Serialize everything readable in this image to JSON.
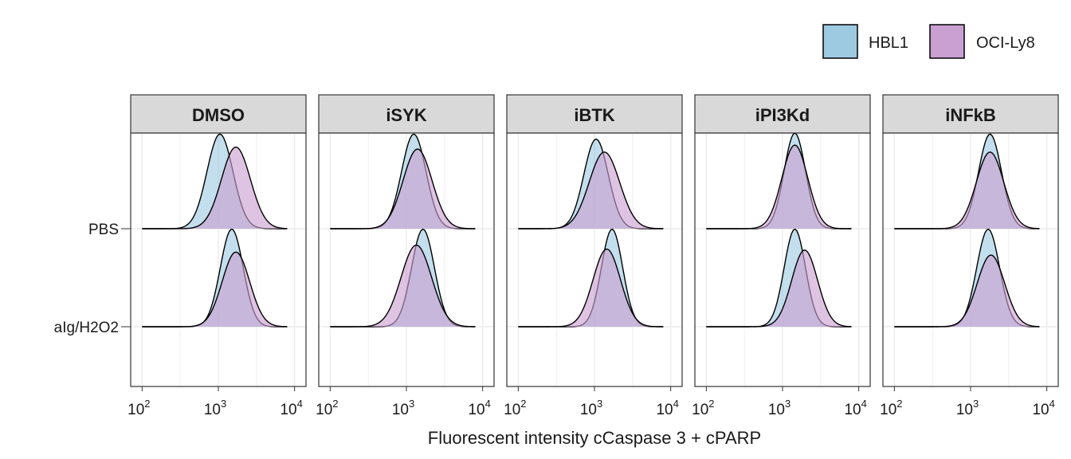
{
  "chart_data": {
    "type": "area",
    "subtype": "ridgeline-density",
    "x_axis": {
      "scale": "log10",
      "xlim": [
        100,
        10000
      ],
      "tick_values": [
        100,
        1000,
        10000
      ],
      "tick_labels": [
        {
          "base": "10",
          "exp": "2"
        },
        {
          "base": "10",
          "exp": "3"
        },
        {
          "base": "10",
          "exp": "4"
        }
      ],
      "label": "Fluorescent intensity cCaspase 3 + cPARP"
    },
    "y_axis": {
      "categories": [
        "PBS",
        "aIg/H2O2"
      ]
    },
    "grid": true,
    "legend": {
      "position": "top-right",
      "entries": [
        {
          "name": "HBL1",
          "color": "#9ecae1"
        },
        {
          "name": "OCI-Ly8",
          "color": "#c9a0d1"
        }
      ]
    },
    "facets": [
      {
        "label": "DMSO",
        "rows": [
          {
            "category": "PBS",
            "series": [
              {
                "name": "HBL1",
                "peak": 1050,
                "width": 0.17,
                "height": 0.95
              },
              {
                "name": "OCI-Ly8",
                "peak": 1700,
                "width": 0.19,
                "height": 0.82
              }
            ]
          },
          {
            "category": "aIg/H2O2",
            "series": [
              {
                "name": "HBL1",
                "peak": 1500,
                "width": 0.15,
                "height": 0.98
              },
              {
                "name": "OCI-Ly8",
                "peak": 1700,
                "width": 0.18,
                "height": 0.75
              }
            ]
          }
        ]
      },
      {
        "label": "iSYK",
        "rows": [
          {
            "category": "PBS",
            "series": [
              {
                "name": "HBL1",
                "peak": 1250,
                "width": 0.16,
                "height": 0.95
              },
              {
                "name": "OCI-Ly8",
                "peak": 1400,
                "width": 0.19,
                "height": 0.8
              }
            ]
          },
          {
            "category": "aIg/H2O2",
            "series": [
              {
                "name": "HBL1",
                "peak": 1650,
                "width": 0.15,
                "height": 0.98
              },
              {
                "name": "OCI-Ly8",
                "peak": 1350,
                "width": 0.2,
                "height": 0.82
              }
            ]
          }
        ]
      },
      {
        "label": "iBTK",
        "rows": [
          {
            "category": "PBS",
            "series": [
              {
                "name": "HBL1",
                "peak": 1050,
                "width": 0.16,
                "height": 0.9
              },
              {
                "name": "OCI-Ly8",
                "peak": 1350,
                "width": 0.2,
                "height": 0.77
              }
            ]
          },
          {
            "category": "aIg/H2O2",
            "series": [
              {
                "name": "HBL1",
                "peak": 1700,
                "width": 0.14,
                "height": 0.98
              },
              {
                "name": "OCI-Ly8",
                "peak": 1450,
                "width": 0.18,
                "height": 0.78
              }
            ]
          }
        ]
      },
      {
        "label": "iPI3Kd",
        "rows": [
          {
            "category": "PBS",
            "series": [
              {
                "name": "HBL1",
                "peak": 1450,
                "width": 0.14,
                "height": 0.96
              },
              {
                "name": "OCI-Ly8",
                "peak": 1450,
                "width": 0.17,
                "height": 0.84
              }
            ]
          },
          {
            "category": "aIg/H2O2",
            "series": [
              {
                "name": "HBL1",
                "peak": 1450,
                "width": 0.14,
                "height": 0.98
              },
              {
                "name": "OCI-Ly8",
                "peak": 1950,
                "width": 0.17,
                "height": 0.77
              }
            ]
          }
        ]
      },
      {
        "label": "iNFkB",
        "rows": [
          {
            "category": "PBS",
            "series": [
              {
                "name": "HBL1",
                "peak": 1800,
                "width": 0.15,
                "height": 0.95
              },
              {
                "name": "OCI-Ly8",
                "peak": 1800,
                "width": 0.18,
                "height": 0.77
              }
            ]
          },
          {
            "category": "aIg/H2O2",
            "series": [
              {
                "name": "HBL1",
                "peak": 1700,
                "width": 0.15,
                "height": 0.98
              },
              {
                "name": "OCI-Ly8",
                "peak": 1850,
                "width": 0.18,
                "height": 0.72
              }
            ]
          }
        ]
      }
    ]
  }
}
